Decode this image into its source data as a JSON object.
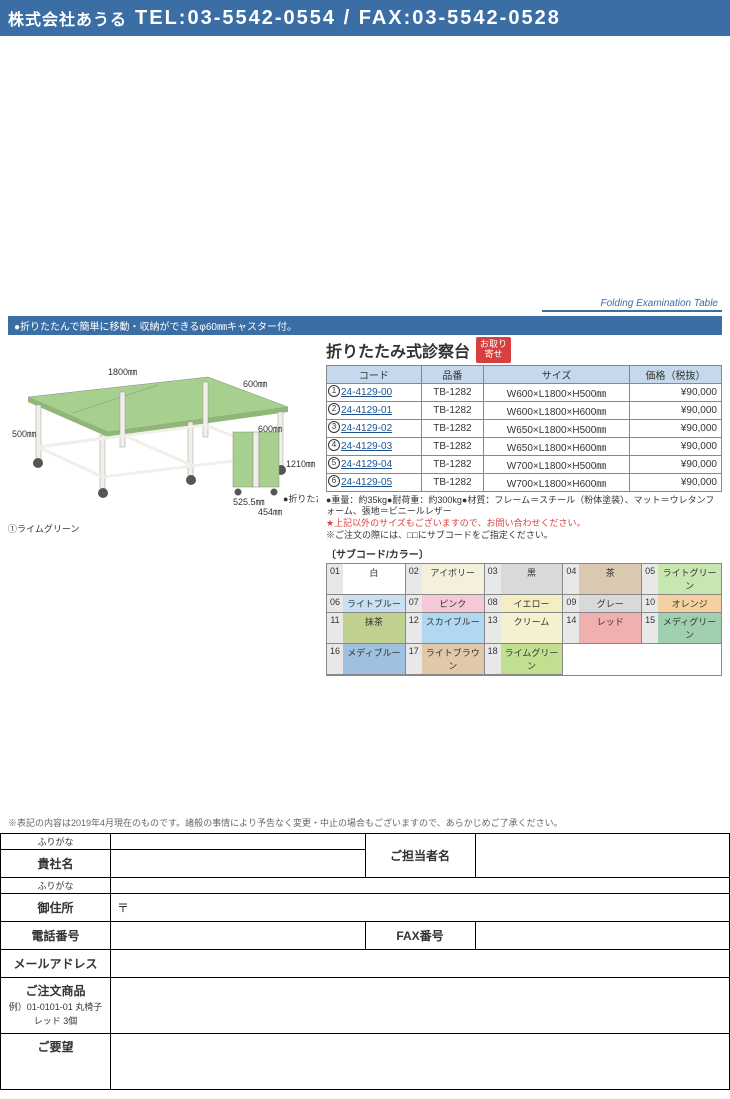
{
  "header": {
    "company": "株式会社あうる",
    "tel_label": "TEL:",
    "tel": "03-5542-0554",
    "sep": "/",
    "fax_label": "FAX:",
    "fax": "03-5542-0528"
  },
  "category": "Folding Examination Table",
  "blue_note": "●折りたたんで簡単に移動・収納ができるφ60㎜キャスター付。",
  "image": {
    "dim_w": "1800㎜",
    "dim_d": "600㎜",
    "dim_h": "500㎜",
    "fold_w": "525.5㎜",
    "fold_d": "454㎜",
    "fold_h": "1210㎜",
    "fold_top": "600㎜",
    "caption": "①ライムグリーン",
    "fold_label": "●折りたたみ時",
    "bed_color": "#a7d08e",
    "frame_color": "#f2efe8"
  },
  "product": {
    "title": "折りたたみ式診察台",
    "badge_line1": "お取り",
    "badge_line2": "寄せ",
    "headers": {
      "code": "コード",
      "model": "品番",
      "size": "サイズ",
      "price": "価格（税抜）"
    },
    "rows": [
      {
        "n": "1",
        "code": "24-4129-00",
        "model": "TB-1282",
        "size": "W600×L1800×H500㎜",
        "price": "¥90,000"
      },
      {
        "n": "2",
        "code": "24-4129-01",
        "model": "TB-1282",
        "size": "W600×L1800×H600㎜",
        "price": "¥90,000"
      },
      {
        "n": "3",
        "code": "24-4129-02",
        "model": "TB-1282",
        "size": "W650×L1800×H500㎜",
        "price": "¥90,000"
      },
      {
        "n": "4",
        "code": "24-4129-03",
        "model": "TB-1282",
        "size": "W650×L1800×H600㎜",
        "price": "¥90,000"
      },
      {
        "n": "5",
        "code": "24-4129-04",
        "model": "TB-1282",
        "size": "W700×L1800×H500㎜",
        "price": "¥90,000"
      },
      {
        "n": "6",
        "code": "24-4129-05",
        "model": "TB-1282",
        "size": "W700×L1800×H600㎜",
        "price": "¥90,000"
      }
    ],
    "note1": "●重量：約35kg●耐荷重：約300kg●材質：フレーム＝スチール（粉体塗装）、マット＝ウレタンフォーム、張地＝ビニールレザー",
    "note2": "★上記以外のサイズもございますので、お問い合わせください。",
    "note3": "※ご注文の際には、□□にサブコードをご指定ください。"
  },
  "subcode": {
    "label": "〔サブコード/カラー〕",
    "items": [
      {
        "n": "01",
        "name": "白",
        "bg": "#ffffff"
      },
      {
        "n": "02",
        "name": "アイボリー",
        "bg": "#f5f0dc"
      },
      {
        "n": "03",
        "name": "黒",
        "bg": "#d9d9d9"
      },
      {
        "n": "04",
        "name": "茶",
        "bg": "#d9c9b0"
      },
      {
        "n": "05",
        "name": "ライトグリーン",
        "bg": "#c8e6b0"
      },
      {
        "n": "06",
        "name": "ライトブルー",
        "bg": "#c8e0f0"
      },
      {
        "n": "07",
        "name": "ピンク",
        "bg": "#f5c8d8"
      },
      {
        "n": "08",
        "name": "イエロー",
        "bg": "#f5eec0"
      },
      {
        "n": "09",
        "name": "グレー",
        "bg": "#d9d9d9"
      },
      {
        "n": "10",
        "name": "オレンジ",
        "bg": "#f5d0a0"
      },
      {
        "n": "11",
        "name": "抹茶",
        "bg": "#c0d090"
      },
      {
        "n": "12",
        "name": "スカイブルー",
        "bg": "#b0d8f0"
      },
      {
        "n": "13",
        "name": "クリーム",
        "bg": "#f5f0d0"
      },
      {
        "n": "14",
        "name": "レッド",
        "bg": "#f0b0b0"
      },
      {
        "n": "15",
        "name": "メディグリーン",
        "bg": "#a0d0b0"
      },
      {
        "n": "16",
        "name": "メディブルー",
        "bg": "#a0c0e0"
      },
      {
        "n": "17",
        "name": "ライトブラウン",
        "bg": "#e0c8a8"
      },
      {
        "n": "18",
        "name": "ライムグリーン",
        "bg": "#c0e090"
      }
    ]
  },
  "disclaimer": "※表記の内容は2019年4月現在のものです。諸般の事情により予告なく変更・中止の場合もございますので、あらかじめご了承ください。",
  "form": {
    "furigana": "ふりがな",
    "company": "貴社名",
    "contact": "ご担当者名",
    "address": "御住所",
    "postal": "〒",
    "tel": "電話番号",
    "fax": "FAX番号",
    "email": "メールアドレス",
    "order": "ご注文商品",
    "example": "例）01-0101-01 丸椅子 レッド 3個",
    "request": "ご要望"
  }
}
